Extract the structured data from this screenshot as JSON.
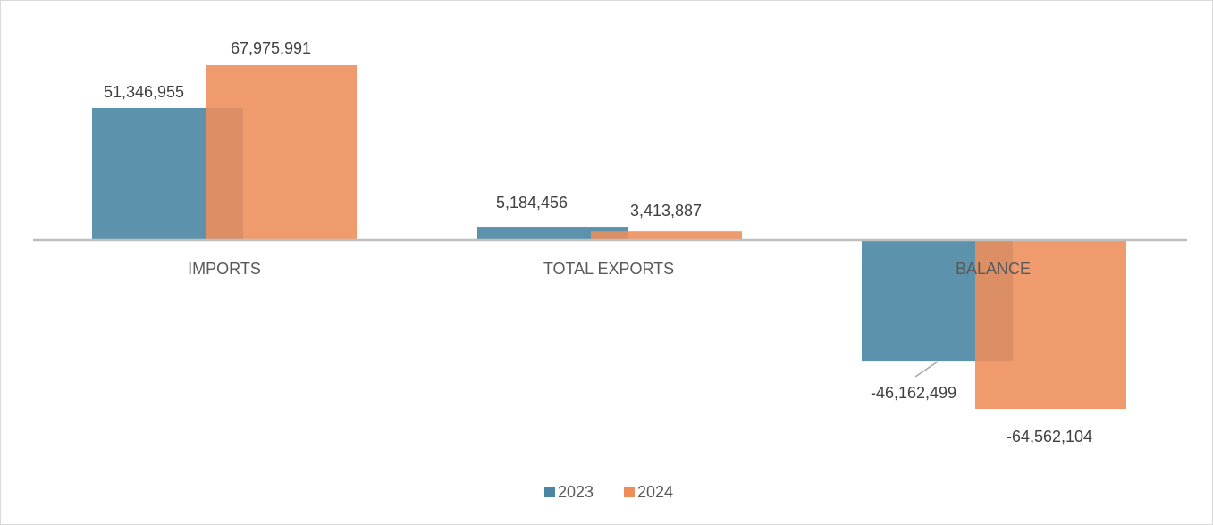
{
  "chart_data": {
    "type": "bar",
    "categories": [
      "IMPORTS",
      "TOTAL EXPORTS",
      "BALANCE"
    ],
    "series": [
      {
        "name": "2023",
        "color": "#4A86A3",
        "values": [
          51346955,
          5184456,
          -46162499
        ],
        "labels": [
          "51,346,955",
          "5,184,456",
          "-46,162,499"
        ]
      },
      {
        "name": "2024",
        "color": "#EE8D5A",
        "values": [
          67975991,
          3413887,
          -64562104
        ],
        "labels": [
          "67,975,991",
          "3,413,887",
          "-64,562,104"
        ]
      }
    ],
    "ylim": [
      -64562104,
      67975991
    ],
    "grid": false,
    "legend": "bottom",
    "title": "",
    "xlabel": "",
    "ylabel": ""
  }
}
